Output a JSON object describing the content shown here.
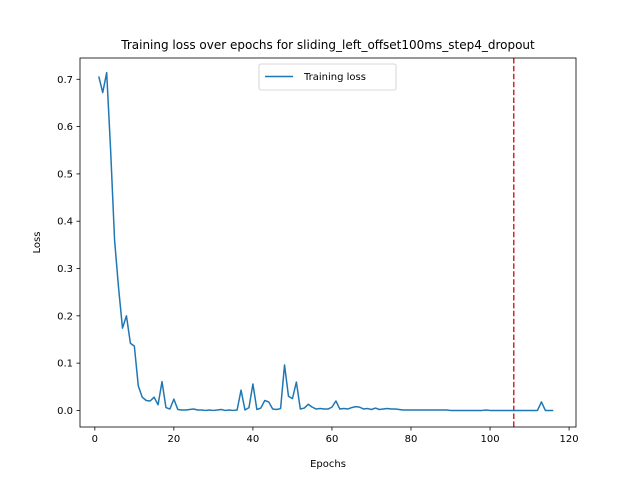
{
  "chart_data": {
    "type": "line",
    "title": "Training loss over epochs for sliding_left_offset100ms_step4_dropout",
    "xlabel": "Epochs",
    "ylabel": "Loss",
    "xlim": [
      -3.75,
      121.75
    ],
    "ylim": [
      -0.035,
      0.745
    ],
    "xticks": [
      0,
      20,
      40,
      60,
      80,
      100,
      120
    ],
    "yticks": [
      0.0,
      0.1,
      0.2,
      0.3,
      0.4,
      0.5,
      0.6,
      0.7
    ],
    "ytick_labels": [
      "0.0",
      "0.1",
      "0.2",
      "0.3",
      "0.4",
      "0.5",
      "0.6",
      "0.7"
    ],
    "legend_position": "upper center",
    "grid": false,
    "vline": {
      "x": 106,
      "color": "#d62728",
      "style": "dashed"
    },
    "series": [
      {
        "name": "Training loss",
        "color": "#1f77b4",
        "x": [
          1,
          2,
          3,
          4,
          5,
          6,
          7,
          8,
          9,
          10,
          11,
          12,
          13,
          14,
          15,
          16,
          17,
          18,
          19,
          20,
          21,
          22,
          23,
          24,
          25,
          26,
          27,
          28,
          29,
          30,
          31,
          32,
          33,
          34,
          35,
          36,
          37,
          38,
          39,
          40,
          41,
          42,
          43,
          44,
          45,
          46,
          47,
          48,
          49,
          50,
          51,
          52,
          53,
          54,
          55,
          56,
          57,
          58,
          59,
          60,
          61,
          62,
          63,
          64,
          65,
          66,
          67,
          68,
          69,
          70,
          71,
          72,
          73,
          74,
          75,
          76,
          77,
          78,
          79,
          80,
          81,
          82,
          83,
          84,
          85,
          86,
          87,
          88,
          89,
          90,
          91,
          92,
          93,
          94,
          95,
          96,
          97,
          98,
          99,
          100,
          101,
          102,
          103,
          104,
          105,
          106,
          107,
          108,
          109,
          110,
          111,
          112,
          113,
          114,
          115,
          116
        ],
        "y": [
          0.706,
          0.672,
          0.714,
          0.55,
          0.36,
          0.26,
          0.174,
          0.2,
          0.142,
          0.136,
          0.052,
          0.028,
          0.021,
          0.02,
          0.028,
          0.012,
          0.061,
          0.006,
          0.003,
          0.024,
          0.002,
          0.001,
          0.001,
          0.002,
          0.003,
          0.001,
          0.001,
          0.0,
          0.001,
          0.0,
          0.001,
          0.002,
          0.0,
          0.001,
          0.0,
          0.001,
          0.043,
          0.001,
          0.006,
          0.056,
          0.002,
          0.005,
          0.021,
          0.018,
          0.003,
          0.002,
          0.004,
          0.096,
          0.03,
          0.025,
          0.06,
          0.003,
          0.005,
          0.013,
          0.007,
          0.003,
          0.004,
          0.003,
          0.003,
          0.007,
          0.02,
          0.003,
          0.004,
          0.003,
          0.006,
          0.008,
          0.007,
          0.003,
          0.004,
          0.002,
          0.005,
          0.002,
          0.003,
          0.004,
          0.003,
          0.003,
          0.002,
          0.001,
          0.001,
          0.001,
          0.001,
          0.001,
          0.001,
          0.001,
          0.001,
          0.001,
          0.001,
          0.001,
          0.001,
          0.0,
          0.0,
          0.0,
          0.0,
          0.0,
          0.0,
          0.0,
          0.0,
          0.0,
          0.001,
          0.0,
          0.0,
          0.0,
          0.0,
          0.0,
          0.0,
          0.0,
          0.0,
          0.0,
          0.0,
          0.0,
          0.0,
          0.0,
          0.018,
          0.0,
          0.0,
          0.0
        ]
      }
    ]
  }
}
